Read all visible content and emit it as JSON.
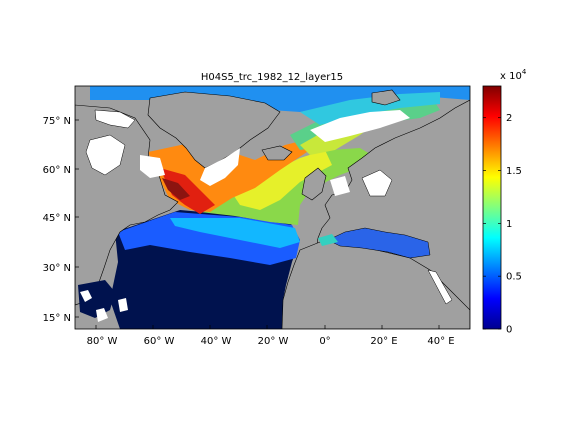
{
  "title": "H04S5_trc_1982_12_layer15",
  "map": {
    "x_ticks": [
      "80° W",
      "60° W",
      "40° W",
      "20° W",
      "0°",
      "20° E",
      "40° E"
    ],
    "y_ticks": [
      "75° N",
      "60° N",
      "45° N",
      "30° N",
      "15° N"
    ],
    "lon_range": [
      -90,
      50
    ],
    "lat_range": [
      10,
      85
    ],
    "land_color": "#a0a0a0",
    "missing_color": "#ffffff",
    "ocean_deep_color": "#00124e"
  },
  "colorbar": {
    "exponent_label": "x 10",
    "exponent_power": "4",
    "tick_labels": [
      "0",
      "0.5",
      "1",
      "1.5",
      "2"
    ],
    "range": [
      0,
      2.3
    ],
    "colormap": "jet"
  }
}
